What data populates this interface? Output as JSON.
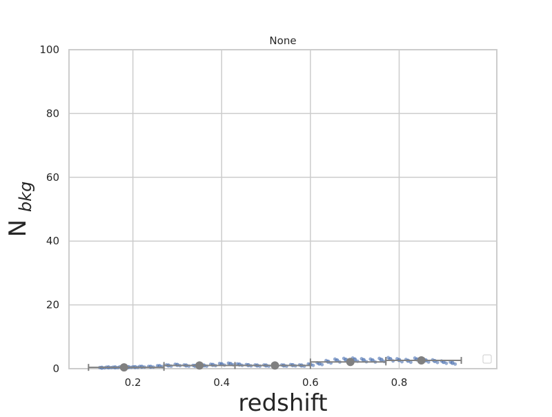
{
  "chart_data": {
    "type": "scatter",
    "title": "None",
    "xlabel": "redshift",
    "ylabel": "N",
    "ylabel_subscript": "bkg",
    "xlim": [
      0.056,
      1.02
    ],
    "ylim": [
      0,
      100
    ],
    "x_ticks": [
      0.2,
      0.4,
      0.6,
      0.8
    ],
    "x_tick_labels": [
      "0.2",
      "0.4",
      "0.6",
      "0.8"
    ],
    "y_ticks": [
      0,
      20,
      40,
      60,
      80,
      100
    ],
    "y_tick_labels": [
      "0",
      "20",
      "40",
      "60",
      "80",
      "100"
    ],
    "grid": true,
    "legend_placement": "lower-right",
    "colors": {
      "points": "#4c72b0",
      "binned": "#808080",
      "grid": "#cccccc",
      "frame": "#cccccc"
    },
    "scatter_series": [
      {
        "x": 0.13,
        "y": 0.3
      },
      {
        "x": 0.145,
        "y": 0.4
      },
      {
        "x": 0.16,
        "y": 0.4
      },
      {
        "x": 0.175,
        "y": 0.5
      },
      {
        "x": 0.19,
        "y": 0.5
      },
      {
        "x": 0.205,
        "y": 0.5
      },
      {
        "x": 0.22,
        "y": 0.6
      },
      {
        "x": 0.24,
        "y": 0.6
      },
      {
        "x": 0.26,
        "y": 0.8
      },
      {
        "x": 0.28,
        "y": 1.0
      },
      {
        "x": 0.3,
        "y": 1.2
      },
      {
        "x": 0.32,
        "y": 1.0
      },
      {
        "x": 0.34,
        "y": 0.9
      },
      {
        "x": 0.36,
        "y": 1.0
      },
      {
        "x": 0.38,
        "y": 1.2
      },
      {
        "x": 0.4,
        "y": 1.4
      },
      {
        "x": 0.42,
        "y": 1.5
      },
      {
        "x": 0.44,
        "y": 1.3
      },
      {
        "x": 0.46,
        "y": 1.1
      },
      {
        "x": 0.48,
        "y": 1.0
      },
      {
        "x": 0.5,
        "y": 1.0
      },
      {
        "x": 0.52,
        "y": 1.1
      },
      {
        "x": 0.54,
        "y": 1.0
      },
      {
        "x": 0.56,
        "y": 1.1
      },
      {
        "x": 0.58,
        "y": 1.0
      },
      {
        "x": 0.6,
        "y": 1.3
      },
      {
        "x": 0.62,
        "y": 1.6
      },
      {
        "x": 0.64,
        "y": 2.2
      },
      {
        "x": 0.66,
        "y": 2.6
      },
      {
        "x": 0.68,
        "y": 2.8
      },
      {
        "x": 0.7,
        "y": 2.9
      },
      {
        "x": 0.72,
        "y": 2.7
      },
      {
        "x": 0.74,
        "y": 2.6
      },
      {
        "x": 0.76,
        "y": 2.8
      },
      {
        "x": 0.78,
        "y": 3.0
      },
      {
        "x": 0.8,
        "y": 2.7
      },
      {
        "x": 0.82,
        "y": 2.5
      },
      {
        "x": 0.84,
        "y": 2.9
      },
      {
        "x": 0.86,
        "y": 2.6
      },
      {
        "x": 0.88,
        "y": 2.4
      },
      {
        "x": 0.9,
        "y": 2.1
      },
      {
        "x": 0.92,
        "y": 1.8
      }
    ],
    "binned_means": [
      {
        "x": 0.18,
        "y": 0.4,
        "xerr_low": 0.1,
        "xerr_high": 0.27,
        "yerr": 0.6
      },
      {
        "x": 0.35,
        "y": 1.0,
        "xerr_low": 0.27,
        "xerr_high": 0.43,
        "yerr": 0.7
      },
      {
        "x": 0.52,
        "y": 1.0,
        "xerr_low": 0.43,
        "xerr_high": 0.6,
        "yerr": 0.6
      },
      {
        "x": 0.69,
        "y": 2.1,
        "xerr_low": 0.6,
        "xerr_high": 0.77,
        "yerr": 1.2
      },
      {
        "x": 0.85,
        "y": 2.6,
        "xerr_low": 0.77,
        "xerr_high": 0.94,
        "yerr": 1.0
      }
    ]
  }
}
